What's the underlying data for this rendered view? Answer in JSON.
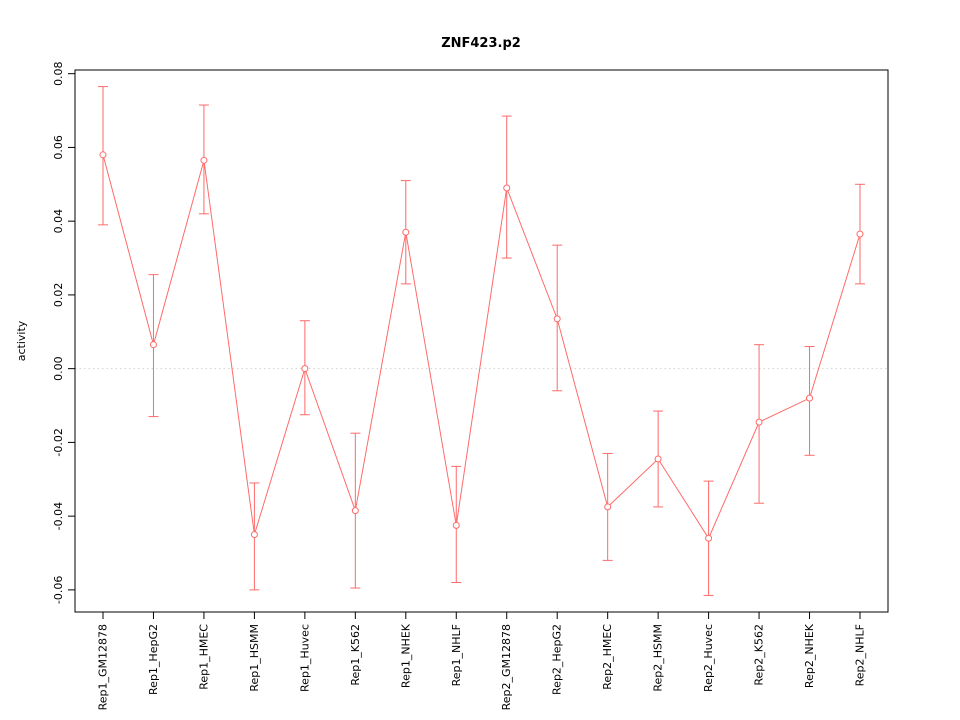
{
  "chart_data": {
    "type": "line",
    "title": "ZNF423.p2",
    "xlabel": "",
    "ylabel": "activity",
    "ylim": [
      -0.066,
      0.081
    ],
    "yticks": [
      -0.06,
      -0.04,
      -0.02,
      0.0,
      0.02,
      0.04,
      0.06,
      0.08
    ],
    "grid": "dotted-zero-line-only",
    "legend": "none",
    "line_color": "#ff6a6a",
    "grid_color": "#d3d3d3",
    "background": "#ffffff",
    "categories": [
      "Rep1_GM12878",
      "Rep1_HepG2",
      "Rep1_HMEC",
      "Rep1_HSMM",
      "Rep1_Huvec",
      "Rep1_K562",
      "Rep1_NHEK",
      "Rep1_NHLF",
      "Rep2_GM12878",
      "Rep2_HepG2",
      "Rep2_HMEC",
      "Rep2_HSMM",
      "Rep2_Huvec",
      "Rep2_K562",
      "Rep2_NHEK",
      "Rep2_NHLF"
    ],
    "values": [
      0.058,
      0.0065,
      0.0565,
      -0.045,
      0.0,
      -0.0385,
      0.037,
      -0.0425,
      0.049,
      0.0135,
      -0.0375,
      -0.0245,
      -0.046,
      -0.0145,
      -0.008,
      0.0365
    ],
    "error_high": [
      0.0765,
      0.0255,
      0.0715,
      -0.031,
      0.013,
      -0.0175,
      0.051,
      -0.0265,
      0.0685,
      0.0335,
      -0.023,
      -0.0115,
      -0.0305,
      0.0065,
      0.006,
      0.05
    ],
    "error_low": [
      0.039,
      -0.013,
      0.042,
      -0.06,
      -0.0125,
      -0.0595,
      0.023,
      -0.058,
      0.03,
      -0.006,
      -0.052,
      -0.0375,
      -0.0615,
      -0.0365,
      -0.0235,
      0.023
    ]
  }
}
